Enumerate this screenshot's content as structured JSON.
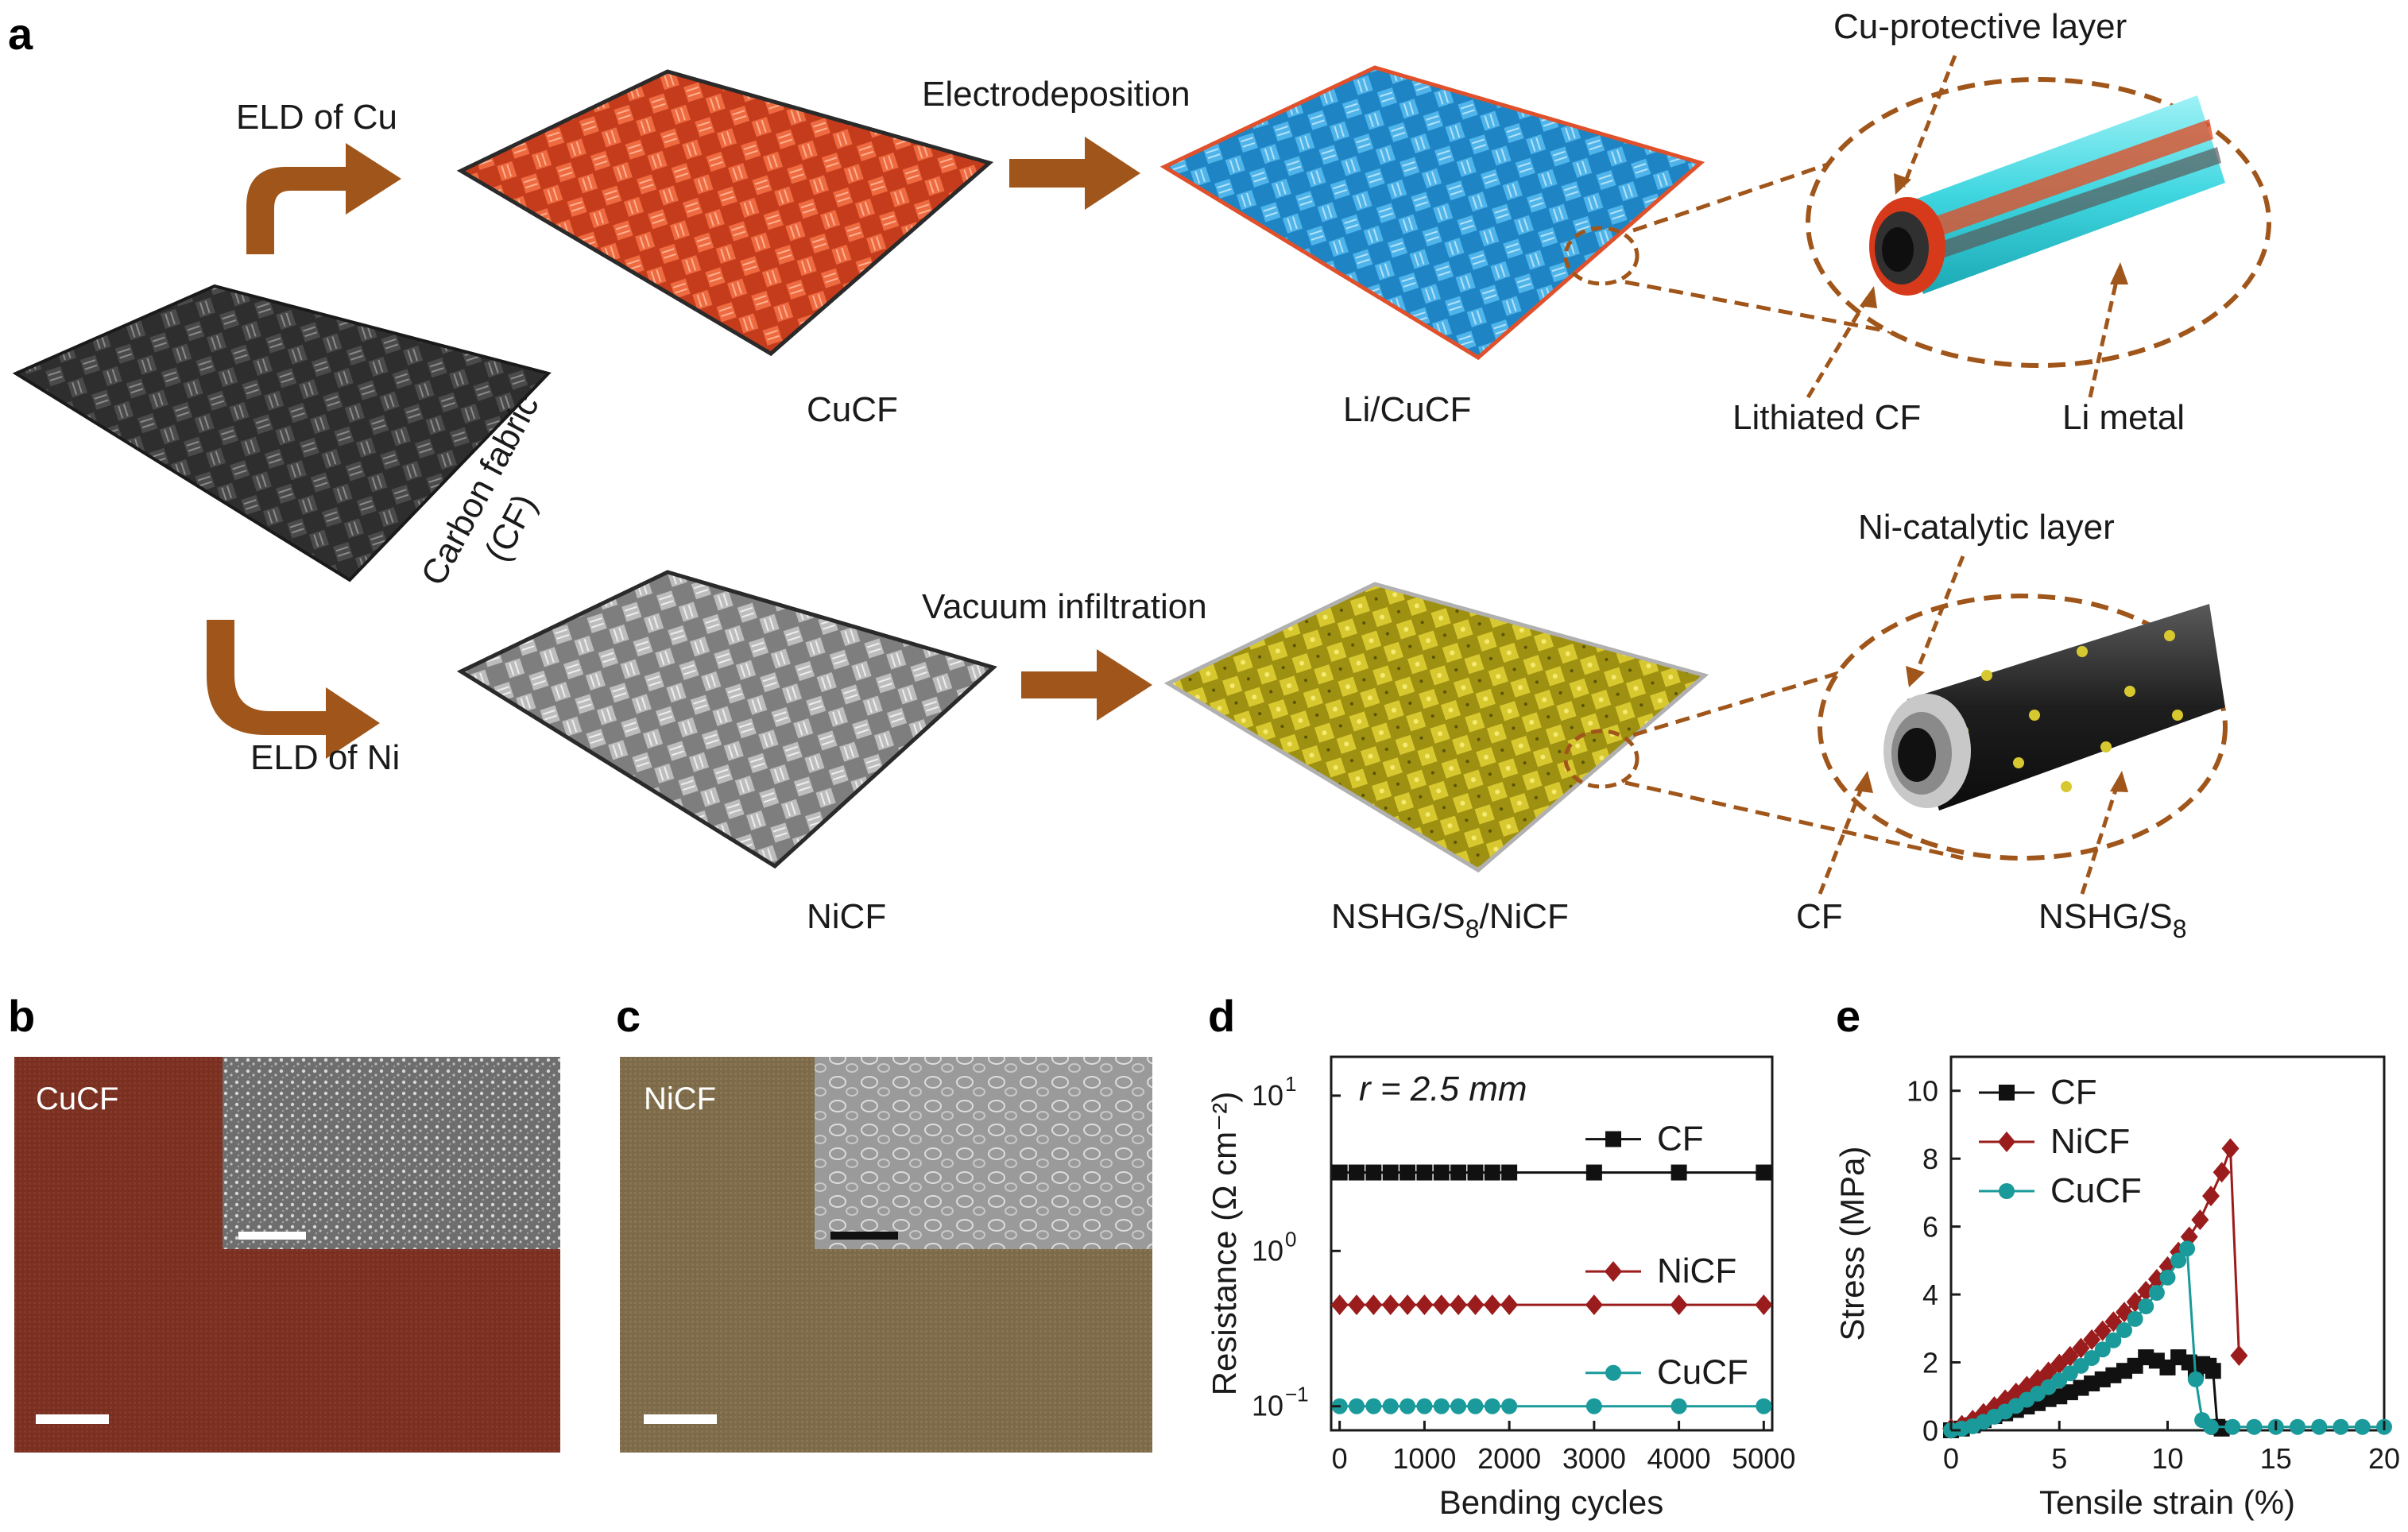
{
  "panel_a": {
    "letter": "a",
    "arrow_eld_cu": "ELD of Cu",
    "arrow_eld_ni": "ELD of Ni",
    "arrow_electrodeposition": "Electrodeposition",
    "arrow_vacuum": "Vacuum infiltration",
    "cf_label_line1": "Carbon fabric",
    "cf_label_line2": "(CF)",
    "cucf_label": "CuCF",
    "licucf_label": "Li/CuCF",
    "nicf_label": "NiCF",
    "nshg_label_main": "NSHG/S",
    "nshg_label_sub": "8",
    "nshg_label_tail": "/NiCF",
    "cu_protective": "Cu-protective layer",
    "lithiated_cf": "Lithiated CF",
    "li_metal": "Li metal",
    "ni_catalytic": "Ni-catalytic layer",
    "cf_core": "CF",
    "nshg_s8_main": "NSHG/S",
    "nshg_s8_sub": "8",
    "colors": {
      "arrow": "#a0561a",
      "cf": "#3a3a3a",
      "cucf": "#e0502a",
      "licucf": "#3aa0d8",
      "nicf": "#9a9a9a",
      "nshg": "#c8b820",
      "li_cyan": "#3fd6e0",
      "dashed": "#a0561a"
    }
  },
  "panel_b": {
    "letter": "b",
    "photo_label": "CuCF",
    "photo_color": "#7a3020"
  },
  "panel_c": {
    "letter": "c",
    "photo_label": "NiCF",
    "photo_color": "#7d6a48"
  },
  "panel_d": {
    "letter": "d",
    "annotation": "r = 2.5 mm",
    "chart_data": {
      "type": "line",
      "xlabel": "Bending cycles",
      "ylabel": "Resistance (Ω cm⁻²)",
      "yscale": "log",
      "xlim": [
        0,
        5000
      ],
      "ylim": [
        0.07,
        10
      ],
      "xticks": [
        0,
        1000,
        2000,
        3000,
        4000,
        5000
      ],
      "x_tick_labels": [
        "0",
        "1000",
        "2000",
        "3000",
        "4000",
        "5000"
      ],
      "y_tick_labels": [
        {
          "base": "10",
          "exp": "1",
          "value": 10
        },
        {
          "base": "10",
          "exp": "0",
          "value": 1
        },
        {
          "base": "10",
          "exp": "−1",
          "value": 0.1
        }
      ],
      "x": [
        0,
        200,
        400,
        600,
        800,
        1000,
        1200,
        1400,
        1600,
        1800,
        2000,
        3000,
        4000,
        5000
      ],
      "series": [
        {
          "name": "CF",
          "color": "#111111",
          "marker": "square",
          "values": [
            3.2,
            3.2,
            3.2,
            3.2,
            3.2,
            3.2,
            3.2,
            3.2,
            3.2,
            3.2,
            3.2,
            3.2,
            3.2,
            3.2
          ]
        },
        {
          "name": "NiCF",
          "color": "#9b1c1c",
          "marker": "diamond",
          "values": [
            0.45,
            0.45,
            0.45,
            0.45,
            0.45,
            0.45,
            0.45,
            0.45,
            0.45,
            0.45,
            0.45,
            0.45,
            0.45,
            0.45
          ]
        },
        {
          "name": "CuCF",
          "color": "#1a9a9a",
          "marker": "circle",
          "values": [
            0.1,
            0.1,
            0.1,
            0.1,
            0.1,
            0.1,
            0.1,
            0.1,
            0.1,
            0.1,
            0.1,
            0.1,
            0.1,
            0.1
          ]
        }
      ]
    }
  },
  "panel_e": {
    "letter": "e",
    "chart_data": {
      "type": "line",
      "xlabel": "Tensile strain (%)",
      "ylabel": "Stress (MPa)",
      "xlim": [
        0,
        20
      ],
      "ylim": [
        0,
        11
      ],
      "xticks": [
        0,
        5,
        10,
        15,
        20
      ],
      "yticks": [
        0,
        2,
        4,
        6,
        8,
        10
      ],
      "series": [
        {
          "name": "CF",
          "color": "#111111",
          "marker": "square",
          "x": [
            0,
            0.5,
            1,
            1.5,
            2,
            2.5,
            3,
            3.5,
            4,
            4.5,
            5,
            5.5,
            6,
            6.5,
            7,
            7.5,
            8,
            8.5,
            9,
            9.5,
            10,
            10.5,
            11,
            11.3,
            11.6,
            11.9,
            12.1,
            12.3,
            12.5
          ],
          "y": [
            0,
            0.05,
            0.15,
            0.3,
            0.42,
            0.5,
            0.6,
            0.7,
            0.8,
            0.92,
            1.0,
            1.12,
            1.25,
            1.38,
            1.5,
            1.62,
            1.75,
            1.9,
            2.15,
            2.05,
            1.85,
            2.15,
            2.0,
            1.7,
            1.95,
            1.9,
            1.75,
            0.1,
            0.05
          ]
        },
        {
          "name": "NiCF",
          "color": "#9b1c1c",
          "marker": "diamond",
          "x": [
            0,
            0.5,
            1,
            1.5,
            2,
            2.5,
            3,
            3.5,
            4,
            4.5,
            5,
            5.5,
            6,
            6.5,
            7,
            7.5,
            8,
            8.5,
            9,
            9.5,
            10,
            10.5,
            11,
            11.5,
            12,
            12.5,
            12.9,
            13.3
          ],
          "y": [
            0.05,
            0.15,
            0.3,
            0.5,
            0.7,
            0.9,
            1.1,
            1.3,
            1.5,
            1.72,
            1.95,
            2.18,
            2.42,
            2.67,
            2.93,
            3.2,
            3.48,
            3.78,
            4.1,
            4.45,
            4.82,
            5.25,
            5.7,
            6.2,
            6.9,
            7.6,
            8.3,
            2.2
          ]
        },
        {
          "name": "CuCF",
          "color": "#1a9a9a",
          "marker": "circle",
          "x": [
            0,
            0.5,
            1,
            1.5,
            2,
            2.5,
            3,
            3.5,
            4,
            4.5,
            5,
            5.5,
            6,
            6.5,
            7,
            7.5,
            8,
            8.5,
            9,
            9.5,
            10,
            10.5,
            10.9,
            11.3,
            11.6,
            12,
            13,
            14,
            15,
            16,
            17,
            18,
            19,
            20
          ],
          "y": [
            0,
            0.05,
            0.12,
            0.25,
            0.4,
            0.55,
            0.72,
            0.9,
            1.08,
            1.27,
            1.47,
            1.68,
            1.9,
            2.13,
            2.38,
            2.65,
            2.95,
            3.28,
            3.65,
            4.05,
            4.5,
            5.0,
            5.35,
            1.5,
            0.3,
            0.1,
            0.1,
            0.1,
            0.1,
            0.1,
            0.1,
            0.1,
            0.1,
            0.1
          ]
        }
      ]
    }
  },
  "scale_bar_color": "#ffffff"
}
